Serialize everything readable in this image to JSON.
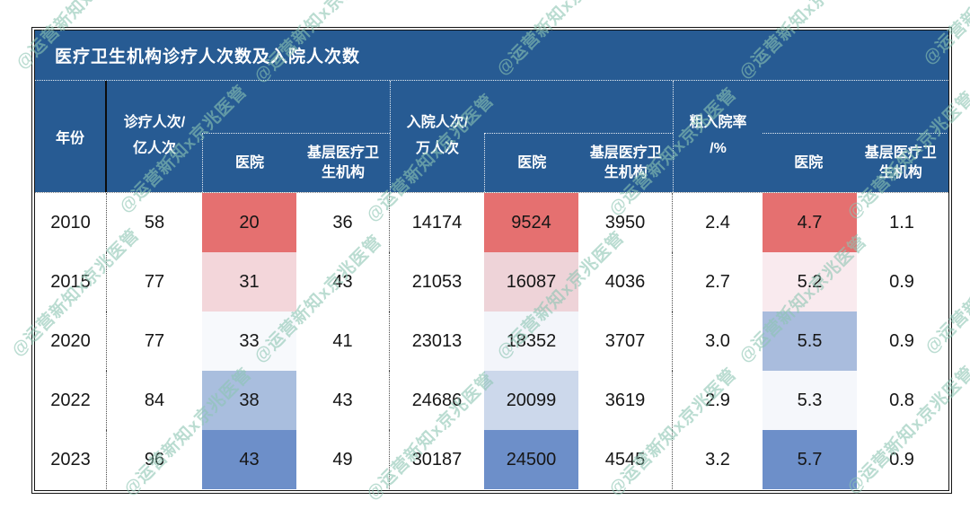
{
  "title": "医疗卫生机构诊疗人次数及入院人次数",
  "watermark": {
    "text": "@运营新知x京兆医管",
    "color": "#8cc5b3"
  },
  "theme": {
    "header_blue": "#275b93",
    "scale_red": "#e57070",
    "scale_blue": "#6d8fc9"
  },
  "table": {
    "header": {
      "year": "年份",
      "sections": [
        {
          "line1": "诊疗人次/",
          "line2": "亿人次",
          "sub": [
            "医院",
            "基层医疗卫生机构"
          ]
        },
        {
          "line1": "入院人次/",
          "line2": "万人次",
          "sub": [
            "医院",
            "基层医疗卫生机构"
          ]
        },
        {
          "line1": "粗入院率",
          "line2": "/%",
          "sub": [
            "医院",
            "基层医疗卫生机构"
          ]
        }
      ]
    },
    "rows": [
      {
        "year": "2010",
        "values": [
          "58",
          "20",
          "36",
          "14174",
          "9524",
          "3950",
          "2.4",
          "4.7",
          "1.1"
        ],
        "colors": [
          null,
          "#e57070",
          null,
          null,
          "#e57070",
          null,
          null,
          "#e57070",
          null
        ]
      },
      {
        "year": "2015",
        "values": [
          "77",
          "31",
          "43",
          "21053",
          "16087",
          "4036",
          "2.7",
          "5.2",
          "0.9"
        ],
        "colors": [
          null,
          "#f3d6da",
          null,
          null,
          "#eed3d8",
          null,
          null,
          "#f9eaee",
          null
        ]
      },
      {
        "year": "2020",
        "values": [
          "77",
          "33",
          "41",
          "23013",
          "18352",
          "3707",
          "3.0",
          "5.5",
          "0.9"
        ],
        "colors": [
          null,
          "#f7f9fc",
          null,
          null,
          "#f3f5fa",
          null,
          null,
          "#a9bcdd",
          null
        ]
      },
      {
        "year": "2022",
        "values": [
          "84",
          "38",
          "43",
          "24686",
          "20099",
          "3619",
          "2.9",
          "5.3",
          "0.8"
        ],
        "colors": [
          null,
          "#a9bede",
          null,
          null,
          "#ccd8eb",
          null,
          null,
          "#f5f7fb",
          null
        ]
      },
      {
        "year": "2023",
        "values": [
          "96",
          "43",
          "49",
          "30187",
          "24500",
          "4545",
          "3.2",
          "5.7",
          "0.9"
        ],
        "colors": [
          null,
          "#6d8fc9",
          null,
          null,
          "#6d8fc9",
          null,
          null,
          "#6d8fc9",
          null
        ]
      }
    ]
  },
  "chart_data": {
    "type": "table",
    "title": "医疗卫生机构诊疗人次数及入院人次数",
    "columns": [
      "年份",
      "诊疗人次/亿人次",
      "诊疗人次-医院",
      "诊疗人次-基层医疗卫生机构",
      "入院人次/万人次",
      "入院人次-医院",
      "入院人次-基层医疗卫生机构",
      "粗入院率/%",
      "粗入院率-医院/%",
      "粗入院率-基层医疗卫生机构/%"
    ],
    "rows": [
      [
        "2010",
        58,
        20,
        36,
        14174,
        9524,
        3950,
        2.4,
        4.7,
        1.1
      ],
      [
        "2015",
        77,
        31,
        43,
        21053,
        16087,
        4036,
        2.7,
        5.2,
        0.9
      ],
      [
        "2020",
        77,
        33,
        41,
        23013,
        18352,
        3707,
        3.0,
        5.5,
        0.9
      ],
      [
        "2022",
        84,
        38,
        43,
        24686,
        20099,
        3619,
        2.9,
        5.3,
        0.8
      ],
      [
        "2023",
        96,
        43,
        49,
        30187,
        24500,
        4545,
        3.2,
        5.7,
        0.9
      ]
    ],
    "notes": "医院 columns use a red-to-blue 3-color conditional-formatting scale (low=red, high=blue)"
  }
}
